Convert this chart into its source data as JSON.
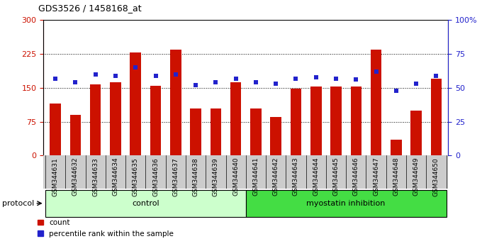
{
  "title": "GDS3526 / 1458168_at",
  "samples": [
    "GSM344631",
    "GSM344632",
    "GSM344633",
    "GSM344634",
    "GSM344635",
    "GSM344636",
    "GSM344637",
    "GSM344638",
    "GSM344639",
    "GSM344640",
    "GSM344641",
    "GSM344642",
    "GSM344643",
    "GSM344644",
    "GSM344645",
    "GSM344646",
    "GSM344647",
    "GSM344648",
    "GSM344649",
    "GSM344650"
  ],
  "counts": [
    115,
    90,
    157,
    162,
    228,
    155,
    235,
    105,
    105,
    163,
    105,
    85,
    148,
    153,
    153,
    153,
    235,
    35,
    100,
    170
  ],
  "percentiles": [
    57,
    54,
    60,
    59,
    65,
    59,
    60,
    52,
    54,
    57,
    54,
    53,
    57,
    58,
    57,
    56,
    62,
    48,
    53,
    59
  ],
  "bar_color": "#cc1100",
  "dot_color": "#2222cc",
  "control_label": "control",
  "treatment_label": "myostatin inhibition",
  "protocol_label": "protocol",
  "legend_count": "count",
  "legend_percentile": "percentile rank within the sample",
  "ylim_left": [
    0,
    300
  ],
  "ylim_right": [
    0,
    100
  ],
  "yticks_left": [
    0,
    75,
    150,
    225,
    300
  ],
  "yticks_right": [
    0,
    25,
    50,
    75,
    100
  ],
  "ytick_right_labels": [
    "0",
    "25",
    "50",
    "75",
    "100%"
  ],
  "grid_lines": [
    75,
    150,
    225
  ],
  "bar_width": 0.55,
  "control_color": "#ccffcc",
  "treatment_color": "#44dd44",
  "xtick_bg": "#cccccc"
}
